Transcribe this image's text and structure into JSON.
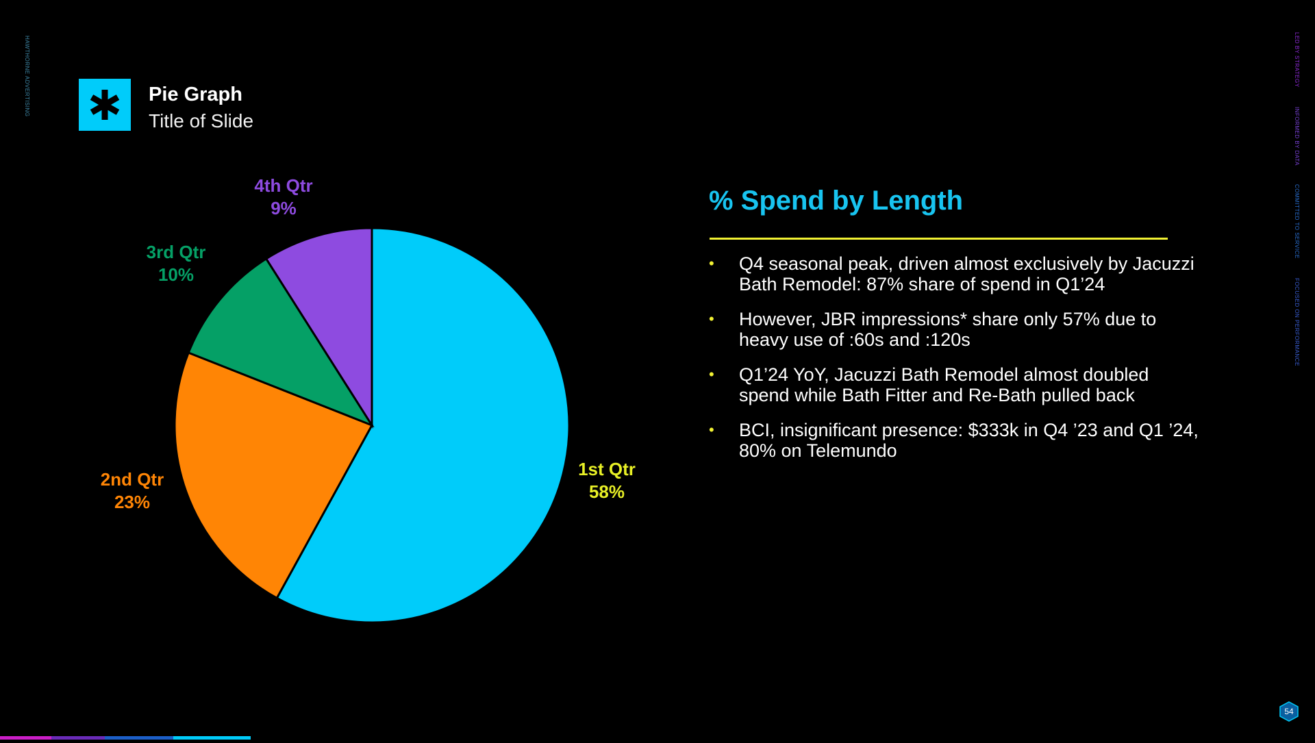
{
  "side_left": "HAWTHORNE ADVERTISING",
  "side_right": [
    {
      "text": "LED BY STRATEGY",
      "color": "#8e2bd8"
    },
    {
      "text": "INFORMED BY DATA",
      "color": "#7a42d8"
    },
    {
      "text": "COMMITTED TO SERVICE",
      "color": "#2a6fd0"
    },
    {
      "text": "FOCUSED ON PERFORMANCE",
      "color": "#3a5fd6"
    }
  ],
  "header": {
    "logo_icon": "asterisk-icon",
    "title": "Pie Graph",
    "subtitle": "Title of Slide"
  },
  "right_panel": {
    "title": "% Spend by Length",
    "bullets": [
      "Q4 seasonal peak, driven almost exclusively by Jacuzzi Bath Remodel: 87% share of spend in Q1’24",
      "However, JBR impressions* share only 57% due to heavy use of :60s and :120s",
      "Q1’24 YoY, Jacuzzi Bath Remodel almost doubled spend while Bath Fitter and Re-Bath pulled back",
      "BCI, insignificant presence: $333k in Q4 ’23 and Q1 ’24, 80% on Telemundo"
    ]
  },
  "page_number": "54",
  "colors": {
    "accent": "#00ccfa",
    "rule": "#f2f233",
    "q1": "#00ccfa",
    "q2": "#ff8505",
    "q3": "#05a066",
    "q4": "#8e4be0"
  },
  "chart_data": {
    "type": "pie",
    "categories": [
      "1st Qtr",
      "2nd Qtr",
      "3rd Qtr",
      "4th Qtr"
    ],
    "values": [
      58,
      23,
      10,
      9
    ],
    "value_labels": [
      "58%",
      "23%",
      "10%",
      "9%"
    ],
    "slice_colors": [
      "#00ccfa",
      "#ff8505",
      "#05a066",
      "#8e4be0"
    ],
    "label_colors": [
      "#e8f026",
      "#ff8505",
      "#05a066",
      "#8e4be0"
    ]
  }
}
